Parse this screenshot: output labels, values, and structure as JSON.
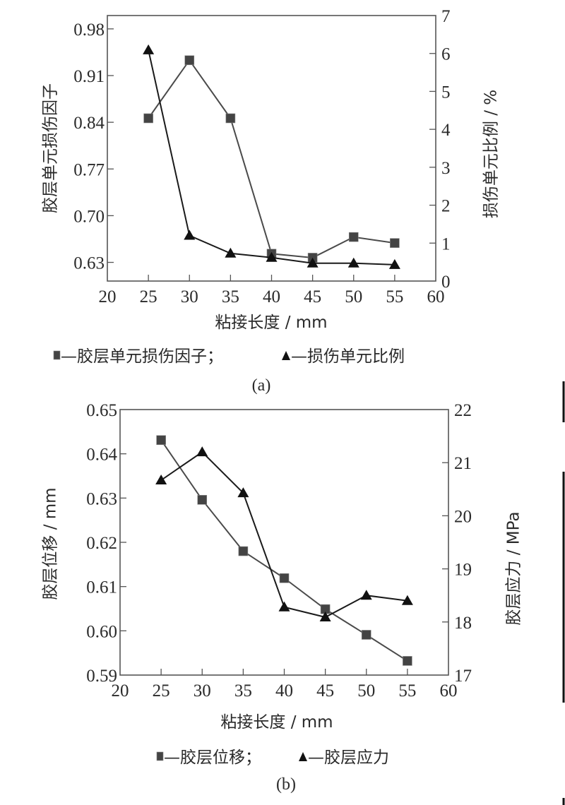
{
  "figure": {
    "scan_artifact_edges": true
  },
  "chart_data": [
    {
      "id": "a",
      "type": "line",
      "caption": "(a)",
      "xlabel": "粘接长度 / mm",
      "ylabel_left": "胶层单元损伤因子",
      "ylabel_right": "损伤单元比例 / %",
      "x_ticks": [
        20,
        25,
        30,
        35,
        40,
        45,
        50,
        55,
        60
      ],
      "y_left_ticks": [
        "0.63",
        "0.70",
        "0.77",
        "0.84",
        "0.91",
        "0.98"
      ],
      "y_right_ticks": [
        "0",
        "1",
        "2",
        "3",
        "4",
        "5",
        "6",
        "7"
      ],
      "xlim": [
        20,
        60
      ],
      "ylim_left": [
        0.602,
        1.0
      ],
      "ylim_right": [
        0,
        7
      ],
      "grid": false,
      "legend_position": "bottom",
      "legend": [
        {
          "marker": "square",
          "label": "—胶层单元损伤因子；"
        },
        {
          "marker": "triangle",
          "label": "—损伤单元比例"
        }
      ],
      "x": [
        25,
        30,
        35,
        40,
        45,
        50,
        55
      ],
      "series": [
        {
          "name": "胶层单元损伤因子",
          "marker": "square",
          "axis": "left",
          "values": [
            0.846,
            0.933,
            0.846,
            0.643,
            0.637,
            0.668,
            0.659
          ]
        },
        {
          "name": "损伤单元比例",
          "marker": "triangle",
          "axis": "right",
          "values": [
            6.09,
            1.2,
            0.73,
            0.62,
            0.47,
            0.47,
            0.43
          ]
        }
      ]
    },
    {
      "id": "b",
      "type": "line",
      "caption": "(b)",
      "xlabel": "粘接长度 / mm",
      "ylabel_left": "胶层位移 / mm",
      "ylabel_right": "胶层应力 / MPa",
      "x_ticks": [
        20,
        25,
        30,
        35,
        40,
        45,
        50,
        55,
        60
      ],
      "y_left_ticks": [
        "0.59",
        "0.60",
        "0.61",
        "0.62",
        "0.63",
        "0.64",
        "0.65"
      ],
      "y_right_ticks": [
        "17",
        "18",
        "19",
        "20",
        "21",
        "22"
      ],
      "xlim": [
        20,
        60
      ],
      "ylim_left": [
        0.59,
        0.65
      ],
      "ylim_right": [
        17,
        22
      ],
      "grid": false,
      "legend_position": "bottom",
      "legend": [
        {
          "marker": "square",
          "label": "—胶层位移；"
        },
        {
          "marker": "triangle",
          "label": "—胶层应力"
        }
      ],
      "x": [
        25,
        30,
        35,
        40,
        45,
        50,
        55
      ],
      "series": [
        {
          "name": "胶层位移",
          "marker": "square",
          "axis": "left",
          "values": [
            0.6431,
            0.6296,
            0.618,
            0.6119,
            0.6049,
            0.5991,
            0.5932
          ]
        },
        {
          "name": "胶层应力",
          "marker": "triangle",
          "axis": "right",
          "values": [
            20.67,
            21.2,
            20.43,
            18.28,
            18.09,
            18.5,
            18.4
          ]
        }
      ]
    }
  ]
}
